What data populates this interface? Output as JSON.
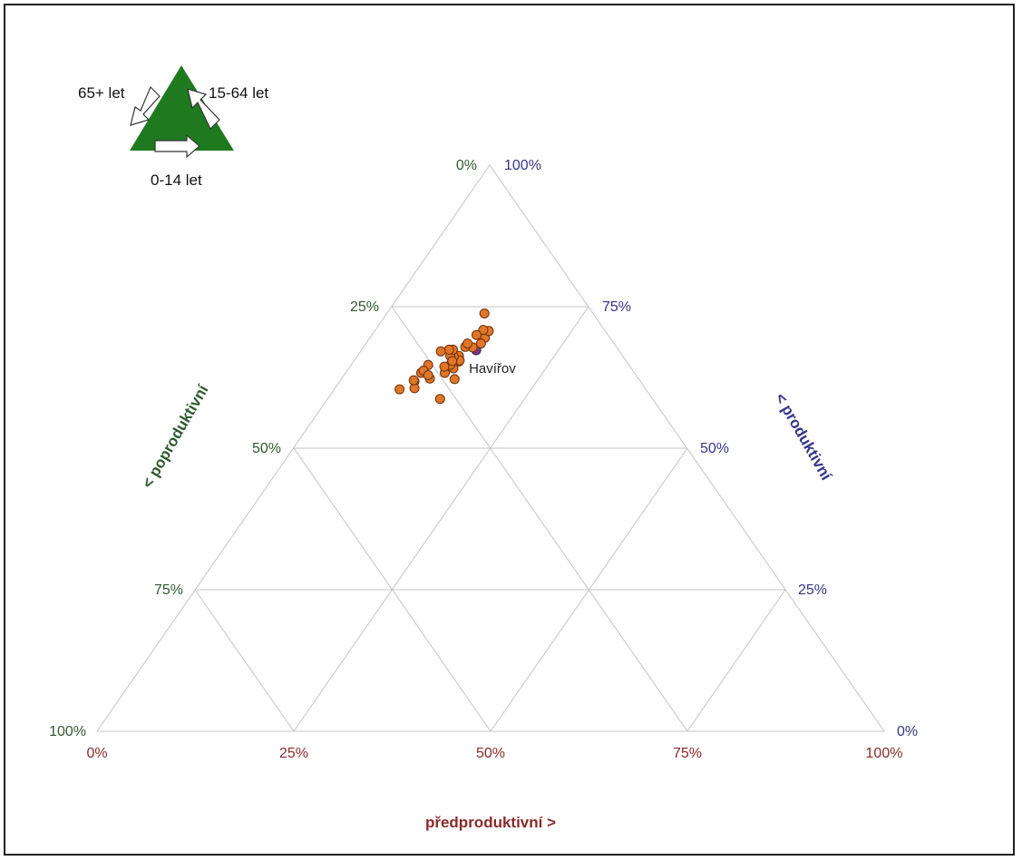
{
  "chart_data": {
    "type": "scatter",
    "subtype": "ternary",
    "colors": {
      "green": "#2f5a2f",
      "blue": "#35358a",
      "red": "#8a2a2a",
      "point": "#e07628",
      "highlight": "#7a3a8a",
      "legend_triangle": "#1f7a1f"
    },
    "axes": {
      "left": {
        "label": "< poproduktivní",
        "ticks": [
          "0%",
          "25%",
          "50%",
          "75%",
          "100%"
        ]
      },
      "right": {
        "label": "< produktivní",
        "ticks": [
          "100%",
          "75%",
          "50%",
          "25%",
          "0%"
        ]
      },
      "bottom": {
        "label": "předproduktivní >",
        "ticks": [
          "0%",
          "25%",
          "50%",
          "75%",
          "100%"
        ]
      }
    },
    "legend": {
      "labels": {
        "top_left": "65+ let",
        "top_right": "15-64 let",
        "bottom": "0-14 let"
      }
    },
    "annotations": [
      {
        "text": "Havířov"
      }
    ],
    "points": [
      {
        "pre": 0.146,
        "prod": 0.673,
        "post": 0.181,
        "highlight": true
      },
      {
        "pre": 0.124,
        "prod": 0.738,
        "post": 0.138
      },
      {
        "pre": 0.139,
        "prod": 0.678,
        "post": 0.183
      },
      {
        "pre": 0.146,
        "prod": 0.695,
        "post": 0.159
      },
      {
        "pre": 0.145,
        "prod": 0.707,
        "post": 0.148
      },
      {
        "pre": 0.143,
        "prod": 0.587,
        "post": 0.27
      },
      {
        "pre": 0.144,
        "prod": 0.622,
        "post": 0.234
      },
      {
        "pre": 0.146,
        "prod": 0.685,
        "post": 0.169
      },
      {
        "pre": 0.137,
        "prod": 0.709,
        "post": 0.154
      },
      {
        "pre": 0.133,
        "prod": 0.7,
        "post": 0.167
      },
      {
        "pre": 0.134,
        "prod": 0.653,
        "post": 0.213
      },
      {
        "pre": 0.133,
        "prod": 0.641,
        "post": 0.226
      },
      {
        "pre": 0.129,
        "prod": 0.679,
        "post": 0.192
      },
      {
        "pre": 0.129,
        "prod": 0.663,
        "post": 0.208
      },
      {
        "pre": 0.134,
        "prod": 0.655,
        "post": 0.211
      },
      {
        "pre": 0.129,
        "prod": 0.685,
        "post": 0.186
      },
      {
        "pre": 0.123,
        "prod": 0.662,
        "post": 0.215
      },
      {
        "pre": 0.126,
        "prod": 0.633,
        "post": 0.241
      },
      {
        "pre": 0.126,
        "prod": 0.647,
        "post": 0.227
      },
      {
        "pre": 0.118,
        "prod": 0.663,
        "post": 0.219
      },
      {
        "pre": 0.125,
        "prod": 0.654,
        "post": 0.221
      },
      {
        "pre": 0.116,
        "prod": 0.674,
        "post": 0.21
      },
      {
        "pre": 0.12,
        "prod": 0.644,
        "post": 0.236
      },
      {
        "pre": 0.112,
        "prod": 0.623,
        "post": 0.265
      },
      {
        "pre": 0.111,
        "prod": 0.674,
        "post": 0.215
      },
      {
        "pre": 0.095,
        "prod": 0.618,
        "post": 0.287
      },
      {
        "pre": 0.096,
        "prod": 0.633,
        "post": 0.271
      },
      {
        "pre": 0.098,
        "prod": 0.647,
        "post": 0.255
      },
      {
        "pre": 0.097,
        "prod": 0.637,
        "post": 0.266
      },
      {
        "pre": 0.101,
        "prod": 0.606,
        "post": 0.293
      },
      {
        "pre": 0.083,
        "prod": 0.604,
        "post": 0.313
      },
      {
        "pre": 0.107,
        "prod": 0.629,
        "post": 0.264
      },
      {
        "pre": 0.102,
        "prod": 0.671,
        "post": 0.227
      },
      {
        "pre": 0.093,
        "prod": 0.62,
        "post": 0.287
      }
    ]
  }
}
